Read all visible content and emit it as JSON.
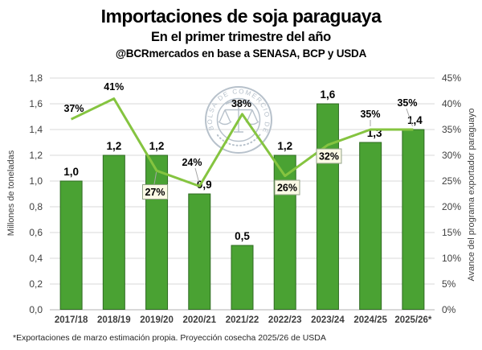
{
  "header": {
    "title": "Importaciones de soja paraguaya",
    "subtitle": "En el primer trimestre del año",
    "source": "@BCRmercados en base a SENASA, BCP y USDA"
  },
  "watermark": {
    "ring_text": "BOLSA DE COMERCIO DE ROSARIO"
  },
  "footer": {
    "note": "*Exportaciones de marzo estimación propia. Proyección cosecha 2025/26 de USDA"
  },
  "chart_data": {
    "type": "bar",
    "subtype": "bar + line combo, dual axis",
    "title": "Importaciones de soja paraguaya",
    "subtitle": "En el primer trimestre del año",
    "source": "@BCRmercados en base a SENASA, BCP y USDA",
    "categories": [
      "2017/18",
      "2018/19",
      "2019/20",
      "2020/21",
      "2021/22",
      "2022/23",
      "2023/24",
      "2024/25",
      "2025/26*"
    ],
    "series": [
      {
        "name": "Importaciones de soja paraguaya",
        "type": "bar",
        "axis": "left",
        "unit": "millones de toneladas",
        "color": "#4aa233",
        "border_color": "#2f6b22",
        "values": [
          1.0,
          1.2,
          1.2,
          0.9,
          0.5,
          1.2,
          1.6,
          1.3,
          1.4
        ],
        "labels": [
          "1,0",
          "1,2",
          "1,2",
          "0,9",
          "0,5",
          "1,2",
          "1,6",
          "1,3",
          "1,4"
        ]
      },
      {
        "name": "Avance del programa exportador paraguayo",
        "type": "line",
        "axis": "right",
        "unit": "%",
        "color": "#85c440",
        "values": [
          37,
          41,
          27,
          24,
          38,
          26,
          32,
          35,
          35
        ],
        "labels": [
          "37%",
          "41%",
          "27%",
          "24%",
          "38%",
          "26%",
          "32%",
          "35%",
          "35%"
        ],
        "callout_boxed": [
          false,
          false,
          true,
          false,
          false,
          true,
          true,
          false,
          false
        ]
      }
    ],
    "left_axis": {
      "title": "Millones de toneladas",
      "min": 0,
      "max": 1.8,
      "step": 0.2,
      "ticks": [
        "0,0",
        "0,2",
        "0,4",
        "0,6",
        "0,8",
        "1,0",
        "1,2",
        "1,4",
        "1,6",
        "1,8"
      ]
    },
    "right_axis": {
      "title": "Avance del programa exportador paraguayo",
      "min": 0,
      "max": 45,
      "step": 5,
      "ticks": [
        "0%",
        "5%",
        "10%",
        "15%",
        "20%",
        "25%",
        "30%",
        "35%",
        "40%",
        "45%"
      ]
    },
    "grid": true,
    "legend": "none"
  }
}
